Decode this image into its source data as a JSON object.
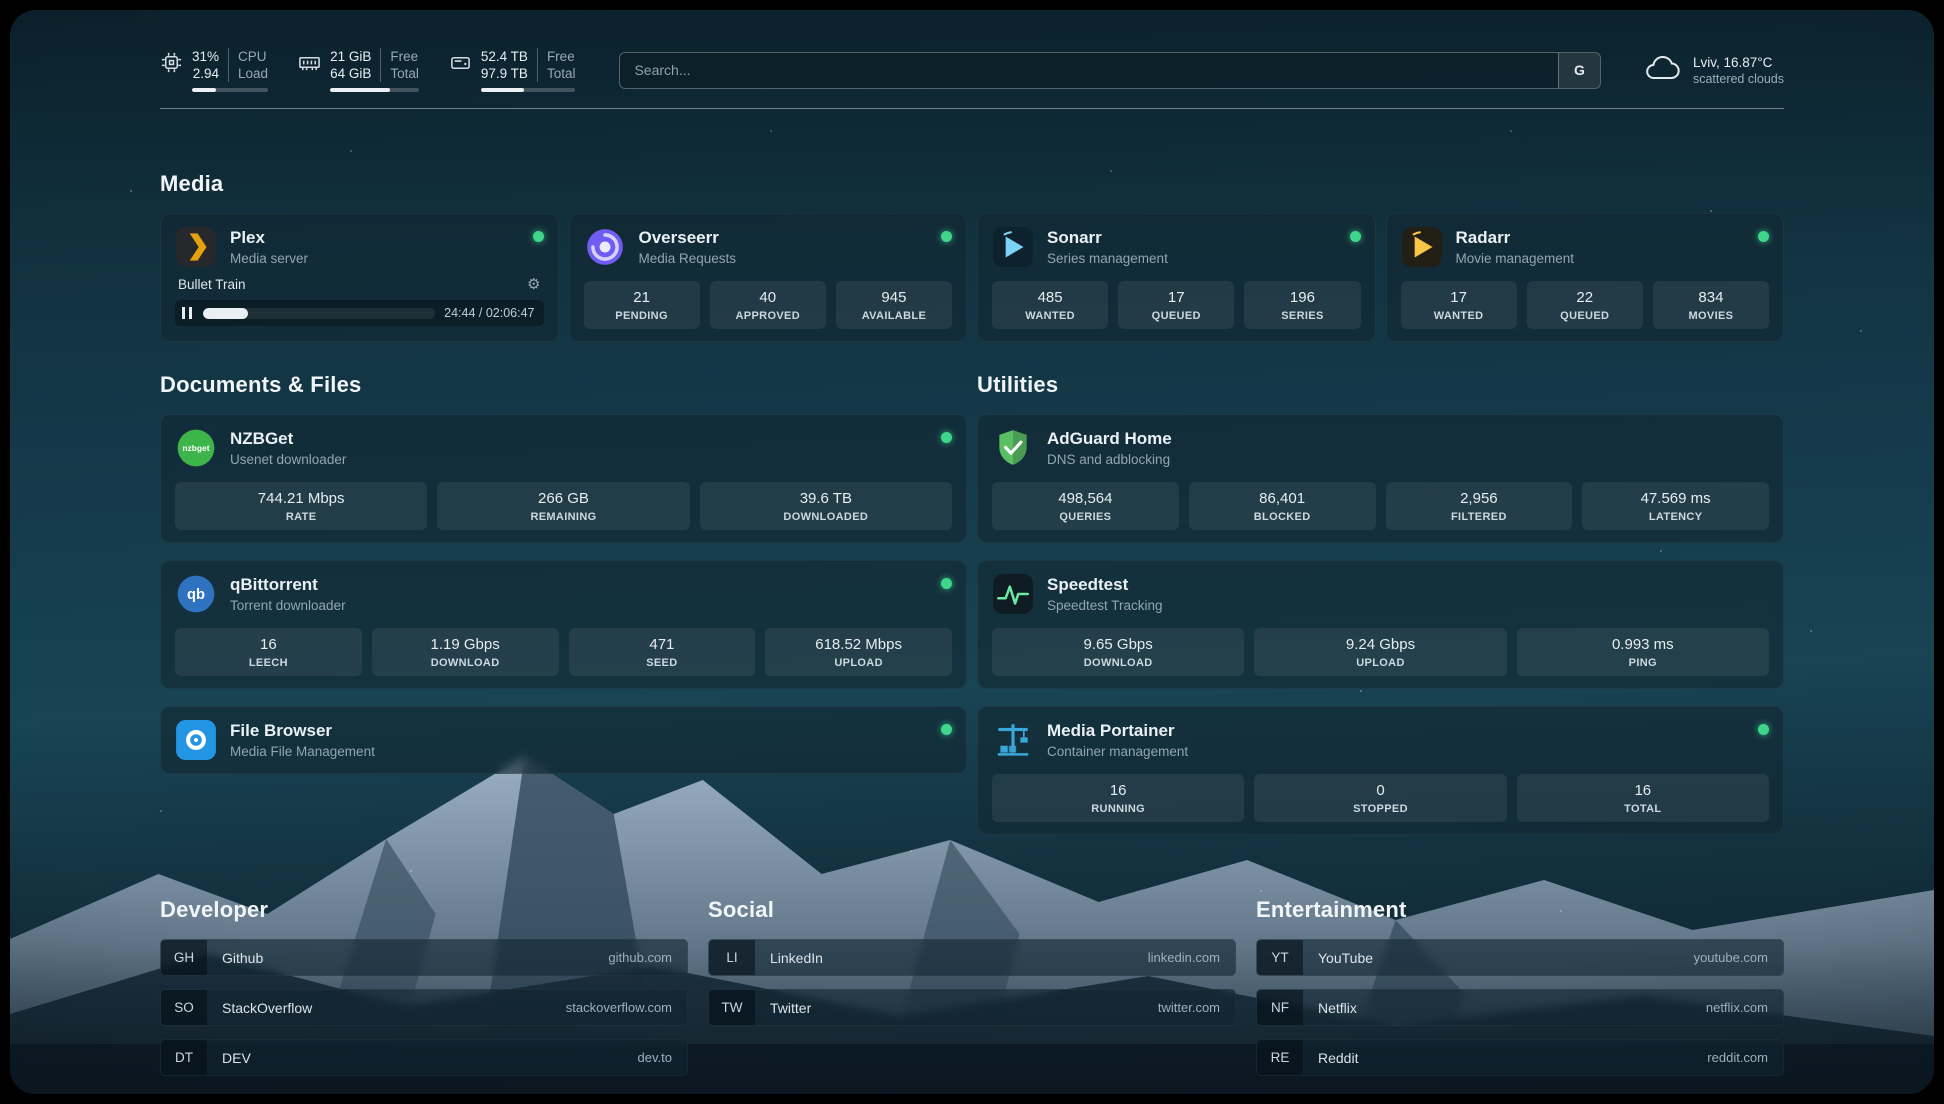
{
  "colors": {
    "status_online": "#3fd68c"
  },
  "icons": {
    "gear": "⚙"
  },
  "header": {
    "cpu": {
      "percent": "31%",
      "load": "2.94",
      "label_top": "CPU",
      "label_bottom": "Load",
      "progress_pct": 31
    },
    "memory": {
      "free": "21 GiB",
      "total": "64 GiB",
      "free_label": "Free",
      "total_label": "Total",
      "progress_pct": 67
    },
    "disk": {
      "free": "52.4 TB",
      "total": "97.9 TB",
      "free_label": "Free",
      "total_label": "Total",
      "progress_pct": 46
    },
    "search": {
      "placeholder": "Search...",
      "button_label": "G"
    },
    "weather": {
      "location": "Lviv, 16.87°C",
      "condition": "scattered clouds"
    }
  },
  "sections": {
    "media": "Media",
    "documents": "Documents & Files",
    "utilities": "Utilities",
    "developer": "Developer",
    "social": "Social",
    "entertainment": "Entertainment"
  },
  "services": {
    "plex": {
      "name": "Plex",
      "description": "Media server",
      "online": true,
      "brand_color": "#e5a00d",
      "now_playing": {
        "title": "Bullet Train",
        "time": "24:44 / 02:06:47",
        "progress_pct": 19.5
      }
    },
    "overseerr": {
      "name": "Overseerr",
      "description": "Media Requests",
      "online": true,
      "brand_color": "#6f5cf0",
      "stats": [
        {
          "value": "21",
          "label": "PENDING"
        },
        {
          "value": "40",
          "label": "APPROVED"
        },
        {
          "value": "945",
          "label": "AVAILABLE"
        }
      ]
    },
    "sonarr": {
      "name": "Sonarr",
      "description": "Series management",
      "online": true,
      "brand_color": "#7dd3f5",
      "stats": [
        {
          "value": "485",
          "label": "WANTED"
        },
        {
          "value": "17",
          "label": "QUEUED"
        },
        {
          "value": "196",
          "label": "SERIES"
        }
      ]
    },
    "radarr": {
      "name": "Radarr",
      "description": "Movie management",
      "online": true,
      "brand_color": "#f7c648",
      "stats": [
        {
          "value": "17",
          "label": "WANTED"
        },
        {
          "value": "22",
          "label": "QUEUED"
        },
        {
          "value": "834",
          "label": "MOVIES"
        }
      ]
    },
    "nzbget": {
      "name": "NZBGet",
      "description": "Usenet downloader",
      "online": true,
      "brand_color": "#3db54a",
      "stats": [
        {
          "value": "744.21 Mbps",
          "label": "RATE"
        },
        {
          "value": "266 GB",
          "label": "REMAINING"
        },
        {
          "value": "39.6 TB",
          "label": "DOWNLOADED"
        }
      ]
    },
    "qbittorrent": {
      "name": "qBittorrent",
      "description": "Torrent downloader",
      "online": true,
      "brand_color": "#2f73c0",
      "stats": [
        {
          "value": "16",
          "label": "LEECH"
        },
        {
          "value": "1.19 Gbps",
          "label": "DOWNLOAD"
        },
        {
          "value": "471",
          "label": "SEED"
        },
        {
          "value": "618.52 Mbps",
          "label": "UPLOAD"
        }
      ]
    },
    "filebrowser": {
      "name": "File Browser",
      "description": "Media File Management",
      "online": true,
      "brand_color": "#2296e3"
    },
    "adguard": {
      "name": "AdGuard Home",
      "description": "DNS and adblocking",
      "online": false,
      "brand_color": "#5abf63",
      "stats": [
        {
          "value": "498,564",
          "label": "QUERIES"
        },
        {
          "value": "86,401",
          "label": "BLOCKED"
        },
        {
          "value": "2,956",
          "label": "FILTERED"
        },
        {
          "value": "47.569 ms",
          "label": "LATENCY"
        }
      ]
    },
    "speedtest": {
      "name": "Speedtest",
      "description": "Speedtest Tracking",
      "online": false,
      "brand_color": "#6ee7a0",
      "stats": [
        {
          "value": "9.65 Gbps",
          "label": "DOWNLOAD"
        },
        {
          "value": "9.24 Gbps",
          "label": "UPLOAD"
        },
        {
          "value": "0.993 ms",
          "label": "PING"
        }
      ]
    },
    "portainer": {
      "name": "Media Portainer",
      "description": "Container management",
      "online": true,
      "brand_color": "#3aa7d9",
      "stats": [
        {
          "value": "16",
          "label": "RUNNING"
        },
        {
          "value": "0",
          "label": "STOPPED"
        },
        {
          "value": "16",
          "label": "TOTAL"
        }
      ]
    }
  },
  "bookmarks": {
    "developer": [
      {
        "abbr": "GH",
        "name": "Github",
        "url": "github.com"
      },
      {
        "abbr": "SO",
        "name": "StackOverflow",
        "url": "stackoverflow.com"
      },
      {
        "abbr": "DT",
        "name": "DEV",
        "url": "dev.to"
      }
    ],
    "social": [
      {
        "abbr": "LI",
        "name": "LinkedIn",
        "url": "linkedin.com"
      },
      {
        "abbr": "TW",
        "name": "Twitter",
        "url": "twitter.com"
      }
    ],
    "entertainment": [
      {
        "abbr": "YT",
        "name": "YouTube",
        "url": "youtube.com"
      },
      {
        "abbr": "NF",
        "name": "Netflix",
        "url": "netflix.com"
      },
      {
        "abbr": "RE",
        "name": "Reddit",
        "url": "reddit.com"
      }
    ]
  }
}
